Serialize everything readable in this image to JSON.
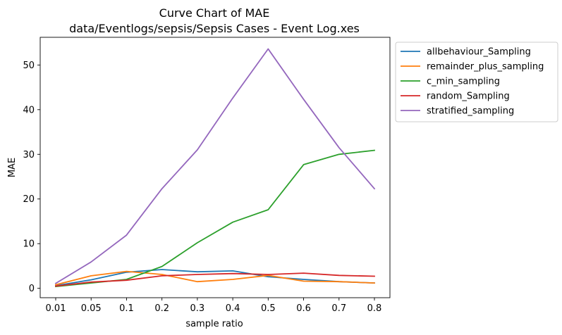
{
  "chart_data": {
    "type": "line",
    "title": "Curve Chart of MAE",
    "subtitle": "data/Eventlogs/sepsis/Sepsis Cases - Event Log.xes",
    "xlabel": "sample ratio",
    "ylabel": "MAE",
    "categories": [
      "0.01",
      "0.05",
      "0.1",
      "0.2",
      "0.3",
      "0.4",
      "0.5",
      "0.6",
      "0.7",
      "0.8"
    ],
    "ylim": [
      -2.1,
      56.2
    ],
    "yticks": [
      0,
      10,
      20,
      30,
      40,
      50
    ],
    "grid": false,
    "legend_position": "outside-upper-right",
    "series": [
      {
        "name": "allbehaviour_Sampling",
        "color": "#1f77b4",
        "values": [
          0.6,
          1.9,
          3.6,
          4.2,
          3.7,
          3.9,
          2.6,
          2.0,
          1.5,
          1.2
        ]
      },
      {
        "name": "remainder_plus_sampling",
        "color": "#ff7f0e",
        "values": [
          0.8,
          2.8,
          3.8,
          3.1,
          1.5,
          2.0,
          2.9,
          1.6,
          1.5,
          1.2
        ]
      },
      {
        "name": "c_min_sampling",
        "color": "#2ca02c",
        "values": [
          0.4,
          1.2,
          2.0,
          4.9,
          10.2,
          14.8,
          17.6,
          27.7,
          30.0,
          30.9
        ]
      },
      {
        "name": "random_Sampling",
        "color": "#d62728",
        "values": [
          0.5,
          1.4,
          1.8,
          2.8,
          3.1,
          3.3,
          3.1,
          3.4,
          2.9,
          2.7
        ]
      },
      {
        "name": "stratified_sampling",
        "color": "#9467bd",
        "values": [
          1.1,
          5.9,
          11.9,
          22.3,
          31.0,
          42.6,
          53.6,
          42.3,
          31.5,
          22.3
        ]
      }
    ]
  }
}
